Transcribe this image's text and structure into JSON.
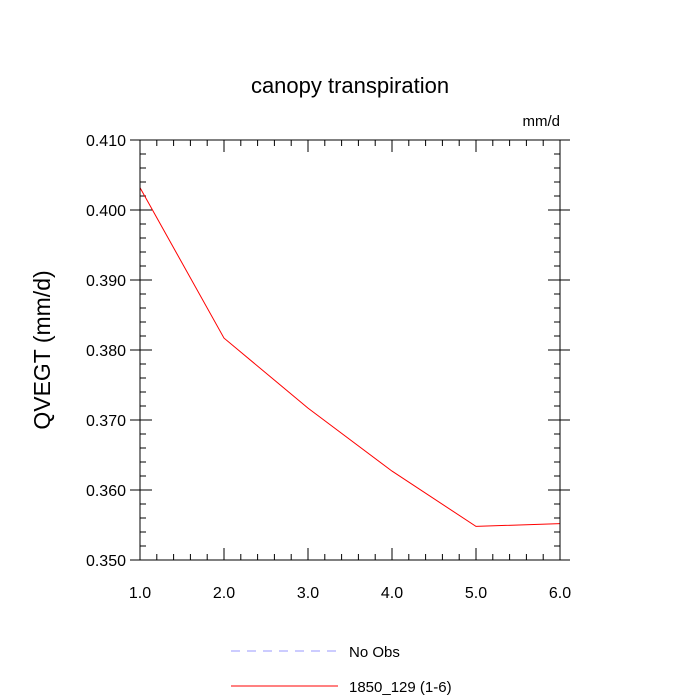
{
  "chart_data": {
    "type": "line",
    "title": "canopy transpiration",
    "units_label": "mm/d",
    "ylabel": "QVEGT  (mm/d)",
    "xlabel": "",
    "xlim": [
      1.0,
      6.0
    ],
    "ylim": [
      0.35,
      0.41
    ],
    "x_ticks": [
      "1.0",
      "2.0",
      "3.0",
      "4.0",
      "5.0",
      "6.0"
    ],
    "y_ticks": [
      "0.350",
      "0.360",
      "0.370",
      "0.380",
      "0.390",
      "0.400",
      "0.410"
    ],
    "x": [
      1.0,
      2.0,
      3.0,
      4.0,
      5.0,
      6.0
    ],
    "series": [
      {
        "name": "1850_129 (1-6)",
        "color": "#ff0000",
        "style": "solid",
        "values": [
          0.4032,
          0.3817,
          0.3717,
          0.3627,
          0.3548,
          0.3552
        ]
      }
    ],
    "legend": [
      {
        "label": "No Obs",
        "color": "#9999ff",
        "style": "dashed"
      },
      {
        "label": "1850_129 (1-6)",
        "color": "#ff0000",
        "style": "solid"
      }
    ],
    "legend_position": "bottom-center",
    "grid": false
  }
}
